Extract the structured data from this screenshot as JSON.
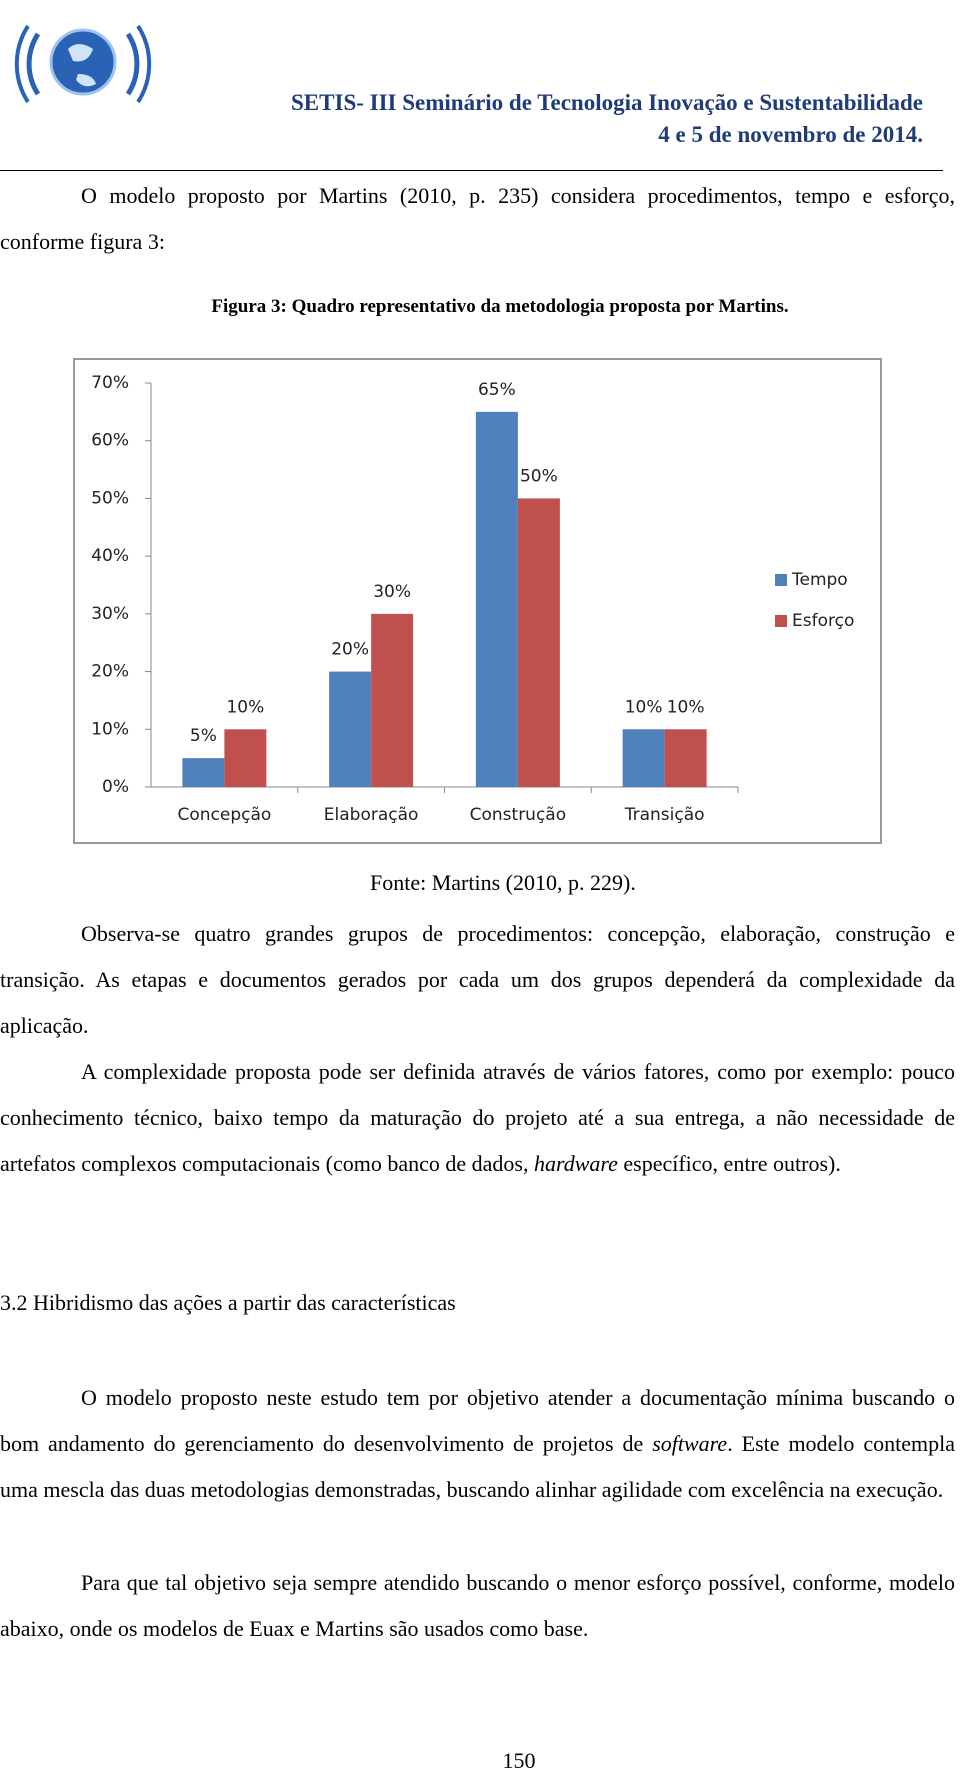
{
  "header": {
    "title": "SETIS- III Seminário de Tecnologia Inovação e Sustentabilidade",
    "date": "4 e 5 de novembro de 2014."
  },
  "paragraphs_before": [
    "O modelo proposto por Martins (2010, p. 235)  considera procedimentos, tempo e esforço, conforme figura 3:"
  ],
  "figure_caption": "Figura 3: Quadro representativo da metodologia proposta por Martins.",
  "chart_data": {
    "type": "bar",
    "categories": [
      "Concepção",
      "Elaboração",
      "Construção",
      "Transição"
    ],
    "series": [
      {
        "name": "Tempo",
        "color": "#4f81bd",
        "values": [
          5,
          20,
          65,
          10
        ],
        "value_labels": [
          "5%",
          "20%",
          "65%",
          "10%"
        ]
      },
      {
        "name": "Esforço",
        "color": "#c0504d",
        "values": [
          10,
          30,
          50,
          10
        ],
        "value_labels": [
          "10%",
          "30%",
          "50%",
          "10%"
        ]
      }
    ],
    "ylim": [
      0,
      70
    ],
    "yticks": [
      {
        "value": 0,
        "label": "0%"
      },
      {
        "value": 10,
        "label": "10%"
      },
      {
        "value": 20,
        "label": "20%"
      },
      {
        "value": 30,
        "label": "30%"
      },
      {
        "value": 40,
        "label": "40%"
      },
      {
        "value": 50,
        "label": "50%"
      },
      {
        "value": 60,
        "label": "60%"
      },
      {
        "value": 70,
        "label": "70%"
      }
    ],
    "grid": false,
    "legend": "right"
  },
  "figure_source": "Fonte: Martins (2010, p. 229).",
  "paragraphs_after": [
    [
      "Observa-se quatro grandes grupos de procedimentos: concepção, elaboração, construção e transição. As etapas e documentos gerados por cada um dos grupos dependerá da complexidade da aplicação."
    ],
    [
      "A complexidade proposta pode ser definida através de vários fatores, como por exemplo: pouco conhecimento técnico, baixo tempo da maturação do projeto até a sua entrega, a não necessidade de artefatos complexos computacionais (como banco de dados, ",
      "hardware",
      " específico, entre outros)."
    ]
  ],
  "section_heading": "3.2 Hibridismo das ações a partir das características",
  "section_paragraphs": [
    [
      "O modelo proposto neste estudo tem por objetivo atender a documentação mínima buscando o bom andamento do gerenciamento do desenvolvimento de projetos de ",
      "software",
      ". Este modelo contempla uma mescla das duas metodologias demonstradas, buscando alinhar agilidade com excelência na execução."
    ],
    [
      "Para que tal objetivo seja sempre atendido buscando o menor esforço possível, conforme, modelo abaixo, onde os modelos de Euax e Martins são usados como base."
    ]
  ],
  "page_number": "150"
}
